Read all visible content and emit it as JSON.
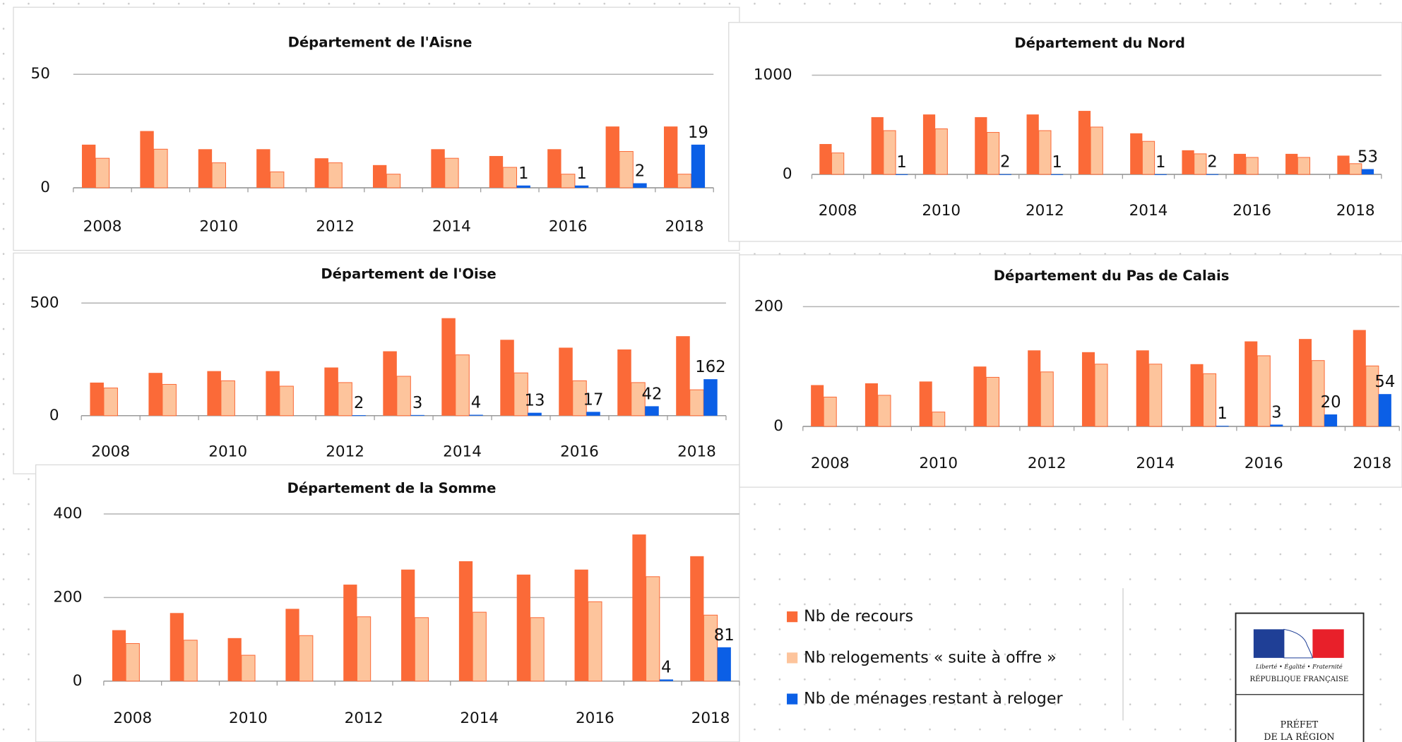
{
  "chart_data": [
    {
      "type": "bar",
      "title": "Département de l'Aisne",
      "categories": [
        "2008",
        null,
        "2010",
        null,
        "2012",
        null,
        "2014",
        null,
        "2016",
        null,
        "2018"
      ],
      "series": [
        {
          "values": [
            19,
            25,
            17,
            17,
            13,
            10,
            17,
            14,
            17,
            27,
            27
          ]
        },
        {
          "values": [
            13,
            17,
            11,
            7,
            11,
            6,
            13,
            9,
            6,
            16,
            6
          ]
        },
        {
          "values": [
            null,
            null,
            null,
            null,
            null,
            null,
            null,
            1,
            1,
            2,
            19
          ]
        }
      ],
      "ylim": [
        0,
        50
      ],
      "yticks": [
        0,
        50
      ]
    },
    {
      "type": "bar",
      "title": "Département du Nord",
      "categories": [
        "2008",
        null,
        "2010",
        null,
        "2012",
        null,
        "2014",
        null,
        "2016",
        null,
        "2018"
      ],
      "series": [
        {
          "values": [
            306,
            577,
            604,
            577,
            604,
            640,
            414,
            243,
            207,
            207,
            189
          ]
        },
        {
          "values": [
            216,
            441,
            459,
            423,
            441,
            477,
            333,
            207,
            171,
            171,
            108
          ]
        },
        {
          "values": [
            null,
            1,
            null,
            2,
            1,
            null,
            1,
            2,
            null,
            null,
            53
          ]
        }
      ],
      "ylim": [
        0,
        1000
      ],
      "yticks": [
        0,
        1000
      ]
    },
    {
      "type": "bar",
      "title": "Département de l'Oise",
      "categories": [
        "2008",
        null,
        "2010",
        null,
        "2012",
        null,
        "2014",
        null,
        "2016",
        null,
        "2018"
      ],
      "series": [
        {
          "values": [
            147,
            190,
            198,
            198,
            214,
            286,
            433,
            337,
            302,
            294,
            353
          ]
        },
        {
          "values": [
            123,
            139,
            155,
            131,
            147,
            175,
            270,
            190,
            155,
            147,
            115
          ]
        },
        {
          "values": [
            null,
            null,
            null,
            null,
            2,
            3,
            4,
            13,
            17,
            42,
            162
          ]
        }
      ],
      "ylim": [
        0,
        500
      ],
      "yticks": [
        0,
        500
      ]
    },
    {
      "type": "bar",
      "title": "Département du Pas de Calais",
      "categories": [
        "2008",
        null,
        "2010",
        null,
        "2012",
        null,
        "2014",
        null,
        "2016",
        null,
        "2018"
      ],
      "series": [
        {
          "values": [
            69,
            72,
            75,
            100,
            127,
            124,
            127,
            104,
            142,
            146,
            161
          ]
        },
        {
          "values": [
            49,
            52,
            24,
            82,
            91,
            104,
            104,
            88,
            118,
            110,
            101
          ]
        },
        {
          "values": [
            null,
            null,
            null,
            null,
            null,
            null,
            null,
            1,
            3,
            20,
            54
          ]
        }
      ],
      "ylim": [
        0,
        200
      ],
      "yticks": [
        0,
        200
      ]
    },
    {
      "type": "bar",
      "title": "Département de la Somme",
      "categories": [
        "2008",
        null,
        "2010",
        null,
        "2012",
        null,
        "2014",
        null,
        "2016",
        null,
        "2018"
      ],
      "series": [
        {
          "values": [
            122,
            163,
            103,
            173,
            231,
            267,
            287,
            255,
            267,
            351,
            299
          ]
        },
        {
          "values": [
            90,
            98,
            62,
            109,
            154,
            152,
            165,
            152,
            190,
            250,
            158
          ]
        },
        {
          "values": [
            null,
            null,
            null,
            null,
            null,
            null,
            null,
            null,
            null,
            4,
            81
          ]
        }
      ],
      "ylim": [
        0,
        400
      ],
      "yticks": [
        0,
        200,
        400
      ]
    }
  ],
  "legend": [
    {
      "name": "Nb de recours",
      "color": "#fb6a38"
    },
    {
      "name": "Nb relogements « suite à offre »",
      "color": "#fdc49c"
    },
    {
      "name": "Nb de ménages restant à reloger",
      "color": "#0b5fe6"
    }
  ],
  "logo": {
    "motto": "Liberté • Égalité • Fraternité",
    "republic": "RÉPUBLIQUE FRANÇAISE",
    "line1": "PRÉFET",
    "line2": "DE LA RÉGION"
  }
}
